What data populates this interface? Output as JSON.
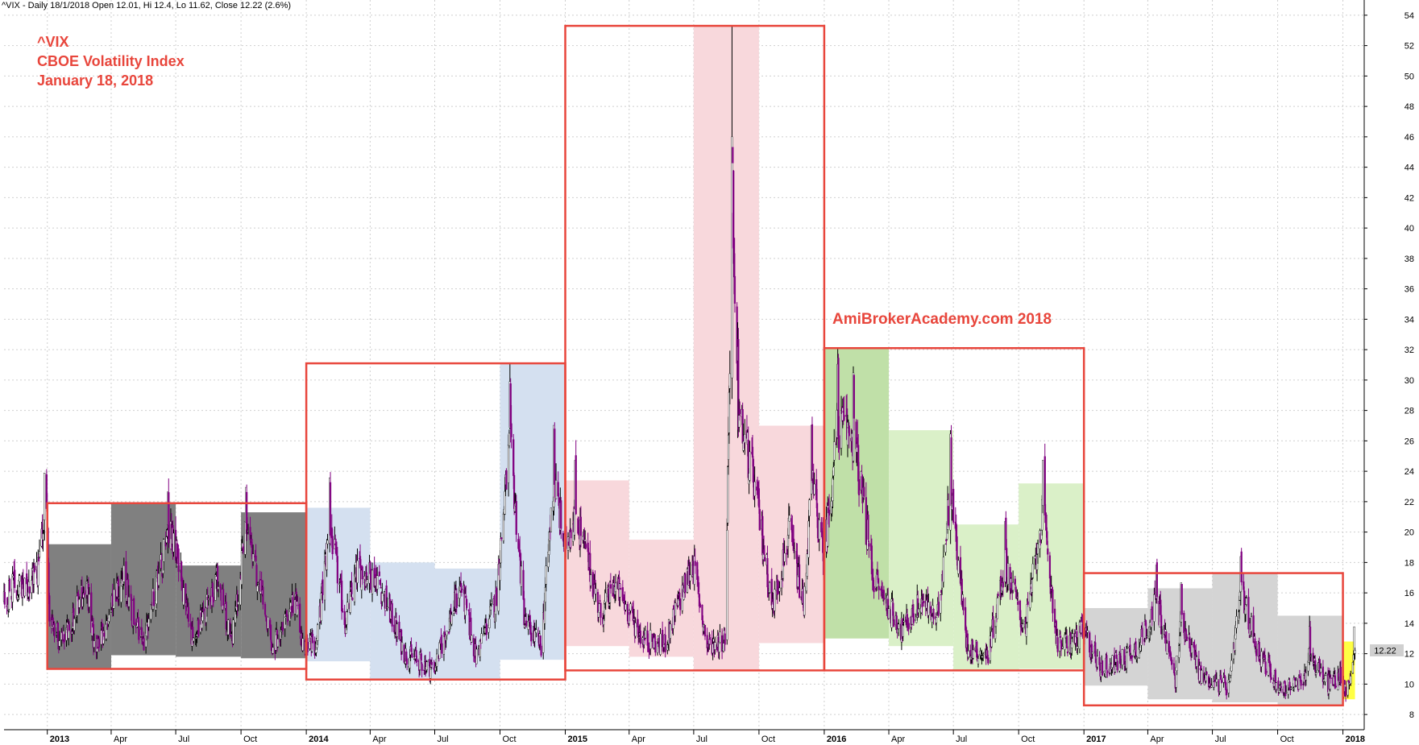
{
  "header": "^VIX - Daily 18/1/2018 Open 12.01, Hi 12.4, Lo 11.62, Close 12.22 (2.6%)",
  "title_lines": [
    "^VIX",
    "CBOE Volatility Index",
    "January 18, 2018"
  ],
  "watermark": "AmiBrokerAcademy.com 2018",
  "last_value_label": "12.22",
  "colors": {
    "candle": "#800080",
    "box_border": "#e8463c",
    "band_2013": "#808080",
    "band_2014": "#d4e0f0",
    "band_2015": "#f8d8dc",
    "band_2016_strong": "#c0e0a8",
    "band_2016": "#daf0c8",
    "band_2017": "#d4d4d4",
    "band_2018": "#ffff44",
    "grid": "#cfcfcf",
    "label_bg": "#d0d0d0"
  },
  "chart_data": {
    "type": "candlestick",
    "x_range": [
      "2012-11-01",
      "2018-01-31"
    ],
    "ylim": [
      7,
      55
    ],
    "y_ticks": [
      8,
      10,
      12,
      14,
      16,
      18,
      20,
      22,
      24,
      26,
      28,
      30,
      32,
      34,
      36,
      38,
      40,
      42,
      44,
      46,
      48,
      50,
      52,
      54
    ],
    "x_ticks": [
      {
        "label": "2013",
        "date": "2013-01-01",
        "year": true
      },
      {
        "label": "Apr",
        "date": "2013-04-01",
        "year": false
      },
      {
        "label": "Jul",
        "date": "2013-07-01",
        "year": false
      },
      {
        "label": "Oct",
        "date": "2013-10-01",
        "year": false
      },
      {
        "label": "2014",
        "date": "2014-01-01",
        "year": true
      },
      {
        "label": "Apr",
        "date": "2014-04-01",
        "year": false
      },
      {
        "label": "Jul",
        "date": "2014-07-01",
        "year": false
      },
      {
        "label": "Oct",
        "date": "2014-10-01",
        "year": false
      },
      {
        "label": "2015",
        "date": "2015-01-01",
        "year": true
      },
      {
        "label": "Apr",
        "date": "2015-04-01",
        "year": false
      },
      {
        "label": "Jul",
        "date": "2015-07-01",
        "year": false
      },
      {
        "label": "Oct",
        "date": "2015-10-01",
        "year": false
      },
      {
        "label": "2016",
        "date": "2016-01-01",
        "year": true
      },
      {
        "label": "Apr",
        "date": "2016-04-01",
        "year": false
      },
      {
        "label": "Jul",
        "date": "2016-07-01",
        "year": false
      },
      {
        "label": "Oct",
        "date": "2016-10-01",
        "year": false
      },
      {
        "label": "2017",
        "date": "2017-01-01",
        "year": true
      },
      {
        "label": "Apr",
        "date": "2017-04-01",
        "year": false
      },
      {
        "label": "Jul",
        "date": "2017-07-01",
        "year": false
      },
      {
        "label": "Oct",
        "date": "2017-10-01",
        "year": false
      },
      {
        "label": "2018",
        "date": "2018-01-01",
        "year": true
      }
    ],
    "quarter_bands": [
      {
        "start": "2013-01-01",
        "end": "2013-04-01",
        "high": 19.2,
        "low": 11.0,
        "color_key": "band_2013"
      },
      {
        "start": "2013-04-01",
        "end": "2013-07-01",
        "high": 21.9,
        "low": 11.9,
        "color_key": "band_2013"
      },
      {
        "start": "2013-07-01",
        "end": "2013-10-01",
        "high": 17.8,
        "low": 11.8,
        "color_key": "band_2013"
      },
      {
        "start": "2013-10-01",
        "end": "2014-01-01",
        "high": 21.3,
        "low": 11.7,
        "color_key": "band_2013"
      },
      {
        "start": "2014-01-01",
        "end": "2014-04-01",
        "high": 21.6,
        "low": 11.5,
        "color_key": "band_2014"
      },
      {
        "start": "2014-04-01",
        "end": "2014-07-01",
        "high": 18.0,
        "low": 10.3,
        "color_key": "band_2014"
      },
      {
        "start": "2014-07-01",
        "end": "2014-10-01",
        "high": 17.6,
        "low": 10.3,
        "color_key": "band_2014"
      },
      {
        "start": "2014-10-01",
        "end": "2015-01-01",
        "high": 31.1,
        "low": 11.6,
        "color_key": "band_2014"
      },
      {
        "start": "2015-01-01",
        "end": "2015-04-01",
        "high": 23.4,
        "low": 12.5,
        "color_key": "band_2015"
      },
      {
        "start": "2015-04-01",
        "end": "2015-07-01",
        "high": 19.5,
        "low": 11.8,
        "color_key": "band_2015"
      },
      {
        "start": "2015-07-01",
        "end": "2015-10-01",
        "high": 53.3,
        "low": 10.9,
        "color_key": "band_2015"
      },
      {
        "start": "2015-10-01",
        "end": "2016-01-01",
        "high": 27.0,
        "low": 12.7,
        "color_key": "band_2015"
      },
      {
        "start": "2016-01-01",
        "end": "2016-04-01",
        "high": 32.1,
        "low": 13.0,
        "color_key": "band_2016_strong"
      },
      {
        "start": "2016-04-01",
        "end": "2016-07-01",
        "high": 26.7,
        "low": 12.5,
        "color_key": "band_2016"
      },
      {
        "start": "2016-07-01",
        "end": "2016-10-01",
        "high": 20.5,
        "low": 10.9,
        "color_key": "band_2016"
      },
      {
        "start": "2016-10-01",
        "end": "2017-01-01",
        "high": 23.2,
        "low": 11.0,
        "color_key": "band_2016"
      },
      {
        "start": "2017-01-01",
        "end": "2017-04-01",
        "high": 15.0,
        "low": 9.9,
        "color_key": "band_2017"
      },
      {
        "start": "2017-04-01",
        "end": "2017-07-01",
        "high": 16.3,
        "low": 9.0,
        "color_key": "band_2017"
      },
      {
        "start": "2017-07-01",
        "end": "2017-10-01",
        "high": 17.3,
        "low": 8.8,
        "color_key": "band_2017"
      },
      {
        "start": "2017-10-01",
        "end": "2018-01-01",
        "high": 14.5,
        "low": 8.6,
        "color_key": "band_2017"
      },
      {
        "start": "2018-01-01",
        "end": "2018-01-18",
        "high": 12.8,
        "low": 9.0,
        "color_key": "band_2018"
      }
    ],
    "year_boxes": [
      {
        "start": "2013-01-01",
        "end": "2014-01-01",
        "high": 21.9,
        "low": 11.0
      },
      {
        "start": "2014-01-01",
        "end": "2015-01-01",
        "high": 31.1,
        "low": 10.3
      },
      {
        "start": "2015-01-01",
        "end": "2016-01-01",
        "high": 53.3,
        "low": 10.9
      },
      {
        "start": "2016-01-01",
        "end": "2017-01-01",
        "high": 32.1,
        "low": 10.9
      },
      {
        "start": "2017-01-01",
        "end": "2018-01-01",
        "high": 17.3,
        "low": 8.6
      }
    ],
    "anchors": [
      {
        "date": "2012-11-01",
        "value": 15.5
      },
      {
        "date": "2012-11-15",
        "value": 16.5
      },
      {
        "date": "2012-12-05",
        "value": 16.2
      },
      {
        "date": "2012-12-20",
        "value": 17.5
      },
      {
        "date": "2012-12-31",
        "value": 22.0
      },
      {
        "date": "2013-01-04",
        "value": 14.0
      },
      {
        "date": "2013-01-25",
        "value": 12.8
      },
      {
        "date": "2013-02-25",
        "value": 16.5
      },
      {
        "date": "2013-03-10",
        "value": 12.0
      },
      {
        "date": "2013-04-18",
        "value": 17.0
      },
      {
        "date": "2013-05-15",
        "value": 12.5
      },
      {
        "date": "2013-06-24",
        "value": 20.5
      },
      {
        "date": "2013-07-25",
        "value": 12.8
      },
      {
        "date": "2013-08-28",
        "value": 16.8
      },
      {
        "date": "2013-09-18",
        "value": 13.0
      },
      {
        "date": "2013-10-09",
        "value": 20.3
      },
      {
        "date": "2013-11-15",
        "value": 12.3
      },
      {
        "date": "2013-12-15",
        "value": 15.5
      },
      {
        "date": "2013-12-27",
        "value": 12.8
      },
      {
        "date": "2014-01-15",
        "value": 12.5
      },
      {
        "date": "2014-02-03",
        "value": 20.5
      },
      {
        "date": "2014-02-25",
        "value": 14.0
      },
      {
        "date": "2014-03-14",
        "value": 17.5
      },
      {
        "date": "2014-04-11",
        "value": 17.0
      },
      {
        "date": "2014-05-20",
        "value": 12.0
      },
      {
        "date": "2014-06-30",
        "value": 11.0
      },
      {
        "date": "2014-08-07",
        "value": 16.5
      },
      {
        "date": "2014-08-28",
        "value": 11.8
      },
      {
        "date": "2014-09-25",
        "value": 15.5
      },
      {
        "date": "2014-10-15",
        "value": 26.0
      },
      {
        "date": "2014-11-05",
        "value": 14.0
      },
      {
        "date": "2014-11-28",
        "value": 12.5
      },
      {
        "date": "2014-12-16",
        "value": 23.5
      },
      {
        "date": "2014-12-31",
        "value": 19.0
      },
      {
        "date": "2015-01-15",
        "value": 21.5
      },
      {
        "date": "2015-02-20",
        "value": 14.5
      },
      {
        "date": "2015-03-12",
        "value": 16.5
      },
      {
        "date": "2015-04-20",
        "value": 13.0
      },
      {
        "date": "2015-05-20",
        "value": 12.5
      },
      {
        "date": "2015-06-30",
        "value": 18.0
      },
      {
        "date": "2015-07-20",
        "value": 12.5
      },
      {
        "date": "2015-08-14",
        "value": 13.0
      },
      {
        "date": "2015-08-24",
        "value": 40.0
      },
      {
        "date": "2015-09-01",
        "value": 28.0
      },
      {
        "date": "2015-09-25",
        "value": 23.0
      },
      {
        "date": "2015-10-20",
        "value": 15.0
      },
      {
        "date": "2015-11-13",
        "value": 20.0
      },
      {
        "date": "2015-12-03",
        "value": 15.0
      },
      {
        "date": "2015-12-14",
        "value": 23.5
      },
      {
        "date": "2015-12-31",
        "value": 18.2
      },
      {
        "date": "2016-01-20",
        "value": 27.0
      },
      {
        "date": "2016-02-11",
        "value": 26.5
      },
      {
        "date": "2016-03-10",
        "value": 17.0
      },
      {
        "date": "2016-04-20",
        "value": 13.5
      },
      {
        "date": "2016-05-18",
        "value": 15.5
      },
      {
        "date": "2016-06-08",
        "value": 14.0
      },
      {
        "date": "2016-06-27",
        "value": 23.0
      },
      {
        "date": "2016-07-20",
        "value": 12.5
      },
      {
        "date": "2016-08-18",
        "value": 11.8
      },
      {
        "date": "2016-09-12",
        "value": 18.0
      },
      {
        "date": "2016-10-10",
        "value": 13.5
      },
      {
        "date": "2016-11-04",
        "value": 21.5
      },
      {
        "date": "2016-11-25",
        "value": 12.5
      },
      {
        "date": "2016-12-15",
        "value": 12.8
      },
      {
        "date": "2016-12-31",
        "value": 13.5
      },
      {
        "date": "2017-01-25",
        "value": 11.0
      },
      {
        "date": "2017-02-20",
        "value": 11.5
      },
      {
        "date": "2017-03-20",
        "value": 12.5
      },
      {
        "date": "2017-04-13",
        "value": 15.5
      },
      {
        "date": "2017-05-10",
        "value": 10.2
      },
      {
        "date": "2017-05-18",
        "value": 14.5
      },
      {
        "date": "2017-06-15",
        "value": 10.5
      },
      {
        "date": "2017-07-25",
        "value": 9.8
      },
      {
        "date": "2017-08-10",
        "value": 16.0
      },
      {
        "date": "2017-09-05",
        "value": 12.0
      },
      {
        "date": "2017-10-05",
        "value": 9.7
      },
      {
        "date": "2017-11-05",
        "value": 10.0
      },
      {
        "date": "2017-11-15",
        "value": 12.0
      },
      {
        "date": "2017-12-10",
        "value": 10.0
      },
      {
        "date": "2017-12-28",
        "value": 10.5
      },
      {
        "date": "2018-01-05",
        "value": 9.3
      },
      {
        "date": "2018-01-18",
        "value": 12.2
      }
    ],
    "spikes": [
      {
        "date": "2012-12-28",
        "high": 23.2
      },
      {
        "date": "2013-06-20",
        "high": 21.9
      },
      {
        "date": "2013-10-08",
        "high": 21.3
      },
      {
        "date": "2014-02-03",
        "high": 21.6
      },
      {
        "date": "2014-10-15",
        "high": 31.1
      },
      {
        "date": "2014-12-16",
        "high": 25.2
      },
      {
        "date": "2015-01-15",
        "high": 23.3
      },
      {
        "date": "2015-08-24",
        "high": 53.3
      },
      {
        "date": "2015-08-25",
        "high": 41.0
      },
      {
        "date": "2015-09-01",
        "high": 33.8
      },
      {
        "date": "2015-12-14",
        "high": 26.8
      },
      {
        "date": "2016-01-20",
        "high": 32.1
      },
      {
        "date": "2016-02-11",
        "high": 30.9
      },
      {
        "date": "2016-06-27",
        "high": 26.7
      },
      {
        "date": "2016-09-12",
        "high": 20.5
      },
      {
        "date": "2016-11-04",
        "high": 23.1
      },
      {
        "date": "2017-04-13",
        "high": 16.3
      },
      {
        "date": "2017-05-18",
        "high": 15.6
      },
      {
        "date": "2017-08-10",
        "high": 17.3
      },
      {
        "date": "2017-11-15",
        "high": 14.5
      },
      {
        "date": "2018-01-17",
        "high": 12.8
      }
    ],
    "last": {
      "date": "2018-01-18",
      "open": 12.01,
      "high": 12.4,
      "low": 11.62,
      "close": 12.22
    }
  }
}
